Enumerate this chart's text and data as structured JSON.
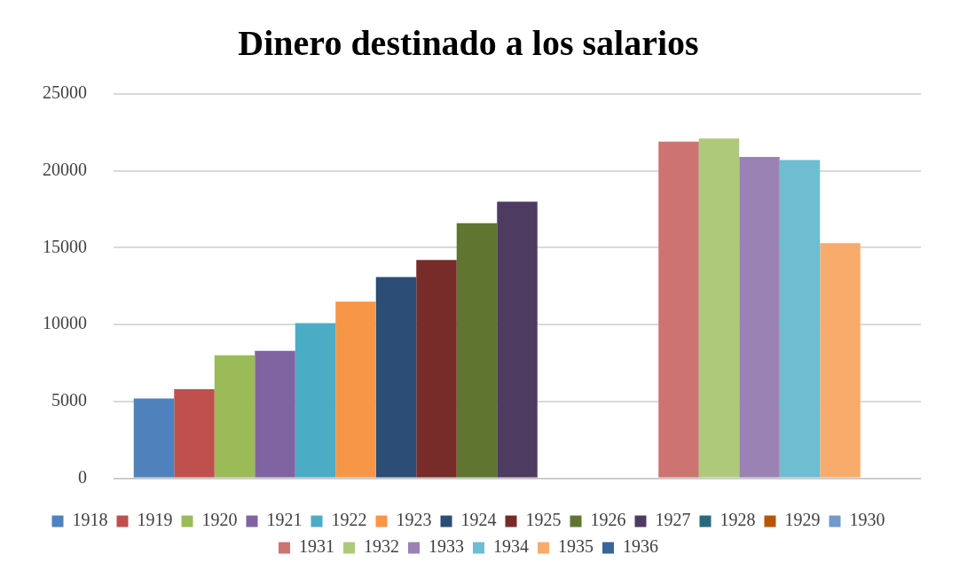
{
  "chart_data": {
    "type": "bar",
    "title": "Dinero destinado a los salarios",
    "categories": [
      null
    ],
    "series": [
      {
        "name": "1918",
        "color": "#4f81bd",
        "values": [
          5200
        ]
      },
      {
        "name": "1919",
        "color": "#c0504d",
        "values": [
          5800
        ]
      },
      {
        "name": "1920",
        "color": "#9bbb59",
        "values": [
          8000
        ]
      },
      {
        "name": "1921",
        "color": "#8064a2",
        "values": [
          8300
        ]
      },
      {
        "name": "1922",
        "color": "#4bacc6",
        "values": [
          10100
        ]
      },
      {
        "name": "1923",
        "color": "#f79646",
        "values": [
          11500
        ]
      },
      {
        "name": "1924",
        "color": "#2c4d75",
        "values": [
          13100
        ]
      },
      {
        "name": "1925",
        "color": "#772c2a",
        "values": [
          14200
        ]
      },
      {
        "name": "1926",
        "color": "#5f7530",
        "values": [
          16600
        ]
      },
      {
        "name": "1927",
        "color": "#4d3b62",
        "values": [
          18000
        ]
      },
      {
        "name": "1928",
        "color": "#276a7c",
        "values": [
          0
        ]
      },
      {
        "name": "1929",
        "color": "#b65708",
        "values": [
          0
        ]
      },
      {
        "name": "1930",
        "color": "#729aca",
        "values": [
          0
        ]
      },
      {
        "name": "1931",
        "color": "#cd7371",
        "values": [
          21900
        ]
      },
      {
        "name": "1932",
        "color": "#afc97a",
        "values": [
          22100
        ]
      },
      {
        "name": "1933",
        "color": "#9a83b4",
        "values": [
          20900
        ]
      },
      {
        "name": "1934",
        "color": "#6fbdd1",
        "values": [
          20700
        ]
      },
      {
        "name": "1935",
        "color": "#f9ab6b",
        "values": [
          15300
        ]
      },
      {
        "name": "1936",
        "color": "#3a6599",
        "values": [
          0
        ]
      }
    ],
    "ylim": [
      0,
      25000
    ],
    "yticks": [
      0,
      5000,
      10000,
      15000,
      20000,
      25000
    ],
    "grid": "y",
    "legend": "bottom"
  }
}
